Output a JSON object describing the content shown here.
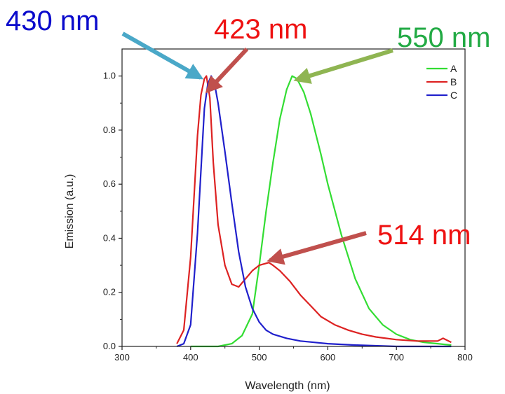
{
  "chart_data": {
    "type": "line",
    "title": "",
    "xlabel": "Wavelength (nm)",
    "ylabel": "Emission (a.u.)",
    "xlim": [
      300,
      800
    ],
    "ylim": [
      0,
      1.1
    ],
    "xticks": [
      300,
      400,
      500,
      600,
      700,
      800
    ],
    "yticks": [
      0.0,
      0.2,
      0.4,
      0.6,
      0.8,
      1.0
    ],
    "xtick_labels": [
      "300",
      "400",
      "500",
      "600",
      "700",
      "800"
    ],
    "ytick_labels": [
      "0.0",
      "0.2",
      "0.4",
      "0.6",
      "0.8",
      "1.0"
    ],
    "grid": false,
    "legend_position": "top-right",
    "series": [
      {
        "name": "A",
        "color": "#33dd33",
        "x": [
          400,
          440,
          460,
          475,
          490,
          500,
          510,
          520,
          530,
          540,
          548,
          555,
          565,
          575,
          590,
          600,
          620,
          640,
          660,
          680,
          700,
          720,
          740,
          760,
          780
        ],
        "y": [
          0.0,
          0.0,
          0.01,
          0.04,
          0.12,
          0.3,
          0.5,
          0.68,
          0.84,
          0.95,
          1.0,
          0.99,
          0.94,
          0.86,
          0.71,
          0.6,
          0.41,
          0.25,
          0.14,
          0.08,
          0.045,
          0.025,
          0.015,
          0.01,
          0.005
        ]
      },
      {
        "name": "B",
        "color": "#dd2222",
        "x": [
          380,
          390,
          400,
          410,
          415,
          420,
          423,
          428,
          433,
          440,
          450,
          460,
          470,
          480,
          490,
          500,
          514,
          520,
          530,
          545,
          560,
          575,
          590,
          610,
          630,
          650,
          670,
          700,
          730,
          760,
          768,
          780
        ],
        "y": [
          0.01,
          0.06,
          0.33,
          0.78,
          0.93,
          0.99,
          1.0,
          0.92,
          0.68,
          0.45,
          0.3,
          0.23,
          0.22,
          0.25,
          0.28,
          0.3,
          0.31,
          0.3,
          0.28,
          0.24,
          0.19,
          0.15,
          0.11,
          0.08,
          0.06,
          0.045,
          0.035,
          0.025,
          0.02,
          0.02,
          0.03,
          0.015
        ]
      },
      {
        "name": "C",
        "color": "#2020cc",
        "x": [
          380,
          390,
          400,
          410,
          420,
          425,
          430,
          435,
          440,
          450,
          460,
          470,
          480,
          490,
          500,
          510,
          520,
          540,
          560,
          580,
          600,
          640,
          700,
          760,
          780
        ],
        "y": [
          0.0,
          0.01,
          0.08,
          0.42,
          0.88,
          0.97,
          1.0,
          0.97,
          0.9,
          0.72,
          0.53,
          0.35,
          0.22,
          0.14,
          0.09,
          0.06,
          0.045,
          0.03,
          0.02,
          0.015,
          0.01,
          0.005,
          0.0,
          0.0,
          0.0
        ]
      }
    ],
    "annotations": [
      {
        "text": "430 nm",
        "color": "#0a0acc",
        "arrow_color": "#4aa8c8",
        "target": [
          430,
          1.0
        ]
      },
      {
        "text": "423 nm",
        "color": "#ee1111",
        "arrow_color": "#c0504d",
        "target": [
          423,
          0.97
        ]
      },
      {
        "text": "550 nm",
        "color": "#22aa44",
        "arrow_color": "#8fb552",
        "target": [
          550,
          0.99
        ]
      },
      {
        "text": "514 nm",
        "color": "#ee1111",
        "arrow_color": "#c0504d",
        "target": [
          514,
          0.32
        ]
      }
    ]
  }
}
